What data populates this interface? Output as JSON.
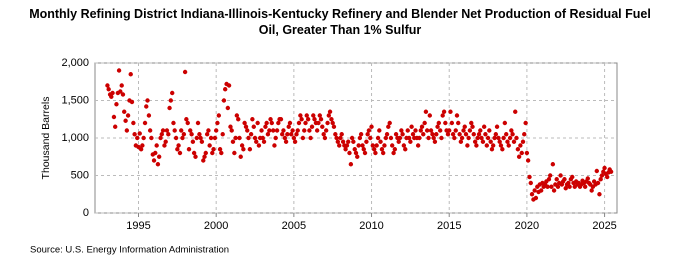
{
  "chart_data": {
    "type": "scatter",
    "title": "Monthly Refining District Indiana-Illinois-Kentucky Refinery and Blender Net Production of Residual Fuel Oil, Greater Than 1% Sulfur",
    "y_label": "Thousand Barrels",
    "source": "Source: U.S. Energy Information Administration",
    "color": "#cc0000",
    "grid": true,
    "xlim": [
      1992.2,
      2025.8
    ],
    "xticks": [
      1995,
      2000,
      2005,
      2010,
      2015,
      2020,
      2025
    ],
    "ylim": [
      0,
      2000
    ],
    "yticks": [
      0,
      500,
      {
        "value": 1000,
        "label": "1,000"
      },
      {
        "value": 1500,
        "label": "1,500"
      },
      {
        "value": 2000,
        "label": "2,000"
      }
    ],
    "x": [
      1993,
      1993.08,
      1993.17,
      1993.25,
      1993.33,
      1993.42,
      1993.5,
      1993.58,
      1993.67,
      1993.75,
      1993.83,
      1993.92,
      1994,
      1994.08,
      1994.17,
      1994.25,
      1994.33,
      1994.42,
      1994.5,
      1994.58,
      1994.67,
      1994.75,
      1994.83,
      1994.92,
      1995,
      1995.08,
      1995.17,
      1995.25,
      1995.33,
      1995.42,
      1995.5,
      1995.58,
      1995.67,
      1995.75,
      1995.83,
      1995.92,
      1996,
      1996.08,
      1996.17,
      1996.25,
      1996.33,
      1996.42,
      1996.5,
      1996.58,
      1996.67,
      1996.75,
      1996.83,
      1996.92,
      1997,
      1997.08,
      1997.17,
      1997.25,
      1997.33,
      1997.42,
      1997.5,
      1997.58,
      1997.67,
      1997.75,
      1997.83,
      1997.92,
      1998,
      1998.08,
      1998.17,
      1998.25,
      1998.33,
      1998.42,
      1998.5,
      1998.58,
      1998.67,
      1998.75,
      1998.83,
      1998.92,
      1999,
      1999.08,
      1999.17,
      1999.25,
      1999.33,
      1999.42,
      1999.5,
      1999.58,
      1999.67,
      1999.75,
      1999.83,
      1999.92,
      2000,
      2000.08,
      2000.17,
      2000.25,
      2000.33,
      2000.42,
      2000.5,
      2000.58,
      2000.67,
      2000.75,
      2000.83,
      2000.92,
      2001,
      2001.08,
      2001.17,
      2001.25,
      2001.33,
      2001.42,
      2001.5,
      2001.58,
      2001.67,
      2001.75,
      2001.83,
      2001.92,
      2002,
      2002.08,
      2002.17,
      2002.25,
      2002.33,
      2002.42,
      2002.5,
      2002.58,
      2002.67,
      2002.75,
      2002.83,
      2002.92,
      2003,
      2003.08,
      2003.17,
      2003.25,
      2003.33,
      2003.42,
      2003.5,
      2003.58,
      2003.67,
      2003.75,
      2003.83,
      2003.92,
      2004,
      2004.08,
      2004.17,
      2004.25,
      2004.33,
      2004.42,
      2004.5,
      2004.58,
      2004.67,
      2004.75,
      2004.83,
      2004.92,
      2005,
      2005.08,
      2005.17,
      2005.25,
      2005.33,
      2005.42,
      2005.5,
      2005.58,
      2005.67,
      2005.75,
      2005.83,
      2005.92,
      2006,
      2006.08,
      2006.17,
      2006.25,
      2006.33,
      2006.42,
      2006.5,
      2006.58,
      2006.67,
      2006.75,
      2006.83,
      2006.92,
      2007,
      2007.08,
      2007.17,
      2007.25,
      2007.33,
      2007.42,
      2007.5,
      2007.58,
      2007.67,
      2007.75,
      2007.83,
      2007.92,
      2008,
      2008.08,
      2008.17,
      2008.25,
      2008.33,
      2008.42,
      2008.5,
      2008.58,
      2008.67,
      2008.75,
      2008.83,
      2008.92,
      2009,
      2009.08,
      2009.17,
      2009.25,
      2009.33,
      2009.42,
      2009.5,
      2009.58,
      2009.67,
      2009.75,
      2009.83,
      2009.92,
      2010,
      2010.08,
      2010.17,
      2010.25,
      2010.33,
      2010.42,
      2010.5,
      2010.58,
      2010.67,
      2010.75,
      2010.83,
      2010.92,
      2011,
      2011.08,
      2011.17,
      2011.25,
      2011.33,
      2011.42,
      2011.5,
      2011.58,
      2011.67,
      2011.75,
      2011.83,
      2011.92,
      2012,
      2012.08,
      2012.17,
      2012.25,
      2012.33,
      2012.42,
      2012.5,
      2012.58,
      2012.67,
      2012.75,
      2012.83,
      2012.92,
      2013,
      2013.08,
      2013.17,
      2013.25,
      2013.33,
      2013.42,
      2013.5,
      2013.58,
      2013.67,
      2013.75,
      2013.83,
      2013.92,
      2014,
      2014.08,
      2014.17,
      2014.25,
      2014.33,
      2014.42,
      2014.5,
      2014.58,
      2014.67,
      2014.75,
      2014.83,
      2014.92,
      2015,
      2015.08,
      2015.17,
      2015.25,
      2015.33,
      2015.42,
      2015.5,
      2015.58,
      2015.67,
      2015.75,
      2015.83,
      2015.92,
      2016,
      2016.08,
      2016.17,
      2016.25,
      2016.33,
      2016.42,
      2016.5,
      2016.58,
      2016.67,
      2016.75,
      2016.83,
      2016.92,
      2017,
      2017.08,
      2017.17,
      2017.25,
      2017.33,
      2017.42,
      2017.5,
      2017.58,
      2017.67,
      2017.75,
      2017.83,
      2017.92,
      2018,
      2018.08,
      2018.17,
      2018.25,
      2018.33,
      2018.42,
      2018.5,
      2018.58,
      2018.67,
      2018.75,
      2018.83,
      2018.92,
      2019,
      2019.08,
      2019.17,
      2019.25,
      2019.33,
      2019.42,
      2019.5,
      2019.58,
      2019.67,
      2019.75,
      2019.83,
      2019.92,
      2020,
      2020.08,
      2020.17,
      2020.25,
      2020.33,
      2020.42,
      2020.5,
      2020.58,
      2020.67,
      2020.75,
      2020.83,
      2020.92,
      2021,
      2021.08,
      2021.17,
      2021.25,
      2021.33,
      2021.42,
      2021.5,
      2021.58,
      2021.67,
      2021.75,
      2021.83,
      2021.92,
      2022,
      2022.08,
      2022.17,
      2022.25,
      2022.33,
      2022.42,
      2022.5,
      2022.58,
      2022.67,
      2022.75,
      2022.83,
      2022.92,
      2023,
      2023.08,
      2023.17,
      2023.25,
      2023.33,
      2023.42,
      2023.5,
      2023.58,
      2023.67,
      2023.75,
      2023.83,
      2023.92,
      2024,
      2024.08,
      2024.17,
      2024.25,
      2024.33,
      2024.42,
      2024.5,
      2024.58,
      2024.67,
      2024.75,
      2024.83,
      2024.92,
      2025,
      2025.08,
      2025.17,
      2025.25,
      2025.33,
      2025.42
    ],
    "values": [
      1700,
      1650,
      1580,
      1550,
      1600,
      1280,
      1150,
      1450,
      1600,
      1900,
      1620,
      1700,
      1580,
      1350,
      1230,
      1100,
      1300,
      1500,
      1850,
      1480,
      1200,
      1050,
      900,
      1000,
      880,
      1060,
      850,
      900,
      1000,
      1200,
      1420,
      1500,
      1300,
      1100,
      1000,
      780,
      700,
      800,
      900,
      650,
      750,
      1000,
      1050,
      1100,
      900,
      950,
      1100,
      1050,
      1400,
      1500,
      1600,
      1200,
      1100,
      1000,
      850,
      900,
      800,
      1100,
      1000,
      1050,
      1880,
      1250,
      1200,
      850,
      1100,
      1050,
      950,
      800,
      750,
      1000,
      1200,
      1050,
      1000,
      950,
      700,
      750,
      800,
      1050,
      1100,
      900,
      1000,
      800,
      850,
      1000,
      1100,
      1200,
      1300,
      850,
      800,
      1050,
      1500,
      1650,
      1720,
      1400,
      1700,
      1150,
      1100,
      950,
      800,
      1000,
      1300,
      1250,
      1000,
      750,
      900,
      850,
      1200,
      1150,
      1100,
      1000,
      850,
      1050,
      1250,
      1150,
      1000,
      950,
      1200,
      900,
      1000,
      1100,
      1000,
      950,
      1150,
      1200,
      1050,
      1100,
      1250,
      1200,
      1100,
      900,
      1000,
      1100,
      1200,
      1250,
      1250,
      1050,
      1100,
      1000,
      950,
      1050,
      1150,
      1200,
      1050,
      1100,
      1000,
      950,
      1050,
      1100,
      1200,
      1300,
      1250,
      1000,
      1100,
      1200,
      1300,
      1250,
      1100,
      1000,
      1150,
      1300,
      1250,
      1200,
      1100,
      1200,
      1300,
      1250,
      1150,
      1050,
      1000,
      1100,
      1200,
      1300,
      1350,
      1250,
      1200,
      1150,
      1050,
      1000,
      950,
      900,
      1000,
      1050,
      950,
      900,
      850,
      900,
      950,
      800,
      650,
      1000,
      950,
      850,
      800,
      750,
      900,
      1000,
      1050,
      900,
      850,
      800,
      950,
      1050,
      1100,
      1000,
      1150,
      900,
      850,
      800,
      900,
      1000,
      1100,
      950,
      850,
      800,
      900,
      1000,
      1050,
      1150,
      1200,
      1000,
      900,
      800,
      850,
      1050,
      1000,
      950,
      1000,
      1100,
      1050,
      900,
      850,
      1000,
      1100,
      1000,
      950,
      1150,
      1050,
      1000,
      1100,
      1000,
      900,
      1000,
      1100,
      1150,
      1050,
      1200,
      1350,
      1100,
      1000,
      1300,
      1100,
      1050,
      1000,
      950,
      1050,
      1150,
      1200,
      1100,
      1000,
      1300,
      1350,
      1200,
      1100,
      1050,
      1100,
      1350,
      1200,
      1050,
      1000,
      1100,
      1300,
      1200,
      1050,
      950,
      1000,
      1100,
      1150,
      1050,
      900,
      1000,
      1100,
      1200,
      1150,
      1050,
      950,
      900,
      1000,
      1050,
      1100,
      1000,
      950,
      1150,
      1050,
      900,
      1000,
      1100,
      950,
      850,
      900,
      1000,
      1050,
      1150,
      1000,
      950,
      900,
      850,
      1000,
      1200,
      1050,
      950,
      900,
      1000,
      1100,
      1050,
      950,
      1350,
      1000,
      850,
      750,
      900,
      800,
      950,
      1050,
      1200,
      800,
      700,
      480,
      400,
      250,
      180,
      300,
      200,
      350,
      280,
      380,
      300,
      400,
      350,
      380,
      420,
      350,
      450,
      500,
      350,
      650,
      300,
      380,
      450,
      350,
      400,
      500,
      380,
      420,
      450,
      330,
      380,
      400,
      350,
      450,
      480,
      400,
      350,
      420,
      380,
      400,
      350,
      380,
      430,
      400,
      350,
      420,
      460,
      400,
      380,
      300,
      350,
      420,
      380,
      560,
      400,
      250,
      450,
      500,
      550,
      600,
      520,
      480,
      540,
      580,
      550
    ]
  }
}
